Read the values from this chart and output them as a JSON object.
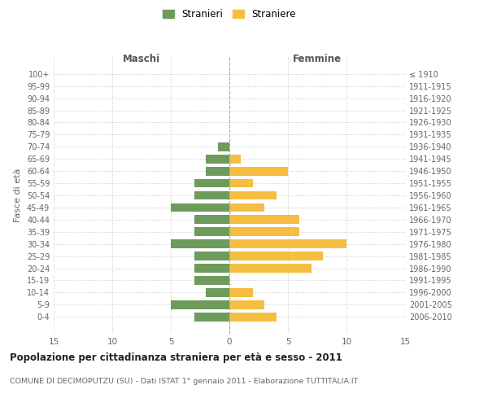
{
  "age_groups": [
    "100+",
    "95-99",
    "90-94",
    "85-89",
    "80-84",
    "75-79",
    "70-74",
    "65-69",
    "60-64",
    "55-59",
    "50-54",
    "45-49",
    "40-44",
    "35-39",
    "30-34",
    "25-29",
    "20-24",
    "15-19",
    "10-14",
    "5-9",
    "0-4"
  ],
  "birth_years": [
    "≤ 1910",
    "1911-1915",
    "1916-1920",
    "1921-1925",
    "1926-1930",
    "1931-1935",
    "1936-1940",
    "1941-1945",
    "1946-1950",
    "1951-1955",
    "1956-1960",
    "1961-1965",
    "1966-1970",
    "1971-1975",
    "1976-1980",
    "1981-1985",
    "1986-1990",
    "1991-1995",
    "1996-2000",
    "2001-2005",
    "2006-2010"
  ],
  "males": [
    0,
    0,
    0,
    0,
    0,
    0,
    1,
    2,
    2,
    3,
    3,
    5,
    3,
    3,
    5,
    3,
    3,
    3,
    2,
    5,
    3
  ],
  "females": [
    0,
    0,
    0,
    0,
    0,
    0,
    0,
    1,
    5,
    2,
    4,
    3,
    6,
    6,
    10,
    8,
    7,
    0,
    2,
    3,
    4
  ],
  "male_color": "#6d9b5b",
  "female_color": "#f5be41",
  "title": "Popolazione per cittadinanza straniera per età e sesso - 2011",
  "subtitle": "COMUNE DI DECIMOPUTZU (SU) - Dati ISTAT 1° gennaio 2011 - Elaborazione TUTTITALIA.IT",
  "xlabel_left": "Maschi",
  "xlabel_right": "Femmine",
  "ylabel_left": "Fasce di età",
  "legend_male": "Stranieri",
  "legend_female": "Straniere",
  "xlim": 15,
  "background_color": "#ffffff",
  "grid_color": "#cccccc"
}
